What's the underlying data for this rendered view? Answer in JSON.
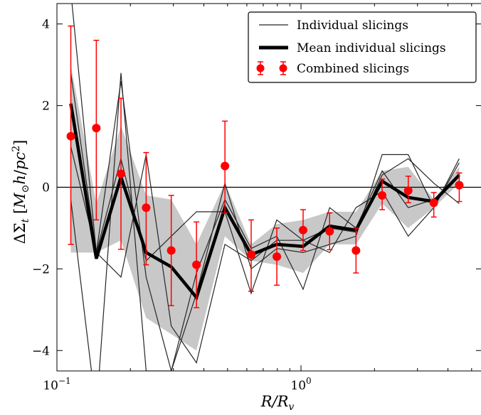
{
  "chart_data": {
    "type": "line",
    "xscale": "log",
    "xlim": [
      0.1,
      5.5
    ],
    "ylim": [
      -4.5,
      4.5
    ],
    "xlabel": "R/R_v",
    "ylabel": "ΔΣ_t [M_⊙h/pc²]",
    "x_ticks": [
      {
        "value": 0.1,
        "base": "10",
        "exp": "−1"
      },
      {
        "value": 1,
        "base": "10",
        "exp": "0"
      }
    ],
    "y_ticks": [
      -4,
      -2,
      0,
      2,
      4
    ],
    "legend_position": "top-right",
    "grid": false,
    "x": [
      0.114,
      0.145,
      0.183,
      0.232,
      0.294,
      0.373,
      0.488,
      0.625,
      0.796,
      1.02,
      1.31,
      1.68,
      2.15,
      2.75,
      3.5,
      4.45
    ],
    "band": {
      "lower": [
        -1.6,
        -1.6,
        -1.3,
        -3.2,
        -3.6,
        -4.0,
        -1.2,
        -1.8,
        -1.9,
        -2.1,
        -1.4,
        -1.4,
        -0.4,
        -1.0,
        -0.5,
        0.1
      ],
      "upper": [
        3.0,
        -0.4,
        1.5,
        -0.2,
        -0.3,
        -1.4,
        0.1,
        -1.4,
        -0.9,
        -0.8,
        -0.6,
        -0.6,
        0.4,
        0.5,
        -0.3,
        0.5
      ]
    },
    "series": [
      {
        "name": "Individual slicings",
        "style": "thin",
        "lines": [
          [
            4.8,
            -1.6,
            2.6,
            -2.2,
            -4.5,
            -2.6,
            0.1,
            -2.0,
            -1.5,
            -1.6,
            -1.4,
            -1.2,
            0.8,
            0.8,
            -0.5,
            0.7
          ],
          [
            -0.3,
            -5.5,
            2.8,
            -4.5,
            -4.5,
            -2.1,
            -0.3,
            -1.5,
            -1.2,
            -2.5,
            -0.5,
            -1.0,
            0.4,
            -0.5,
            -0.3,
            0.3
          ],
          [
            2.8,
            -1.6,
            -2.2,
            0.8,
            -3.4,
            -4.3,
            -1.4,
            -1.8,
            -1.3,
            -1.3,
            -1.6,
            -0.5,
            -0.1,
            -1.2,
            -0.5,
            0.6
          ],
          [
            1.0,
            -1.6,
            0.7,
            -1.8,
            -1.2,
            -0.6,
            -0.6,
            -2.6,
            -0.8,
            -1.3,
            -1.0,
            -1.1,
            0.3,
            0.7,
            0.1,
            -0.4
          ]
        ],
        "color": "#262626"
      },
      {
        "name": "Mean individual slicings",
        "style": "thick",
        "values": [
          2.05,
          -1.75,
          0.25,
          -1.6,
          -1.95,
          -2.7,
          -0.5,
          -1.65,
          -1.4,
          -1.45,
          -0.95,
          -1.05,
          0.15,
          -0.25,
          -0.35,
          0.3
        ],
        "color": "#000000"
      },
      {
        "name": "Combined slicings",
        "style": "errorbar",
        "values": [
          1.25,
          1.45,
          0.33,
          -0.5,
          -1.55,
          -1.9,
          0.52,
          -1.65,
          -1.7,
          -1.05,
          -1.08,
          -1.55,
          -0.2,
          -0.08,
          -0.38,
          0.05
        ],
        "yerr_low": [
          2.65,
          2.25,
          1.85,
          1.4,
          1.35,
          1.05,
          1.15,
          0.9,
          0.7,
          0.5,
          0.45,
          0.55,
          0.35,
          0.3,
          0.35,
          0.4
        ],
        "yerr_high": [
          2.7,
          2.15,
          1.85,
          1.35,
          1.35,
          1.05,
          1.1,
          0.85,
          0.7,
          0.5,
          0.45,
          0.55,
          0.4,
          0.35,
          0.25,
          0.3
        ],
        "color": "#ff0000"
      }
    ],
    "band_color": "#c8c8c8"
  },
  "legend": {
    "items": [
      {
        "label": "Individual slicings"
      },
      {
        "label": "Mean individual slicings"
      },
      {
        "label": "Combined slicings"
      }
    ]
  }
}
